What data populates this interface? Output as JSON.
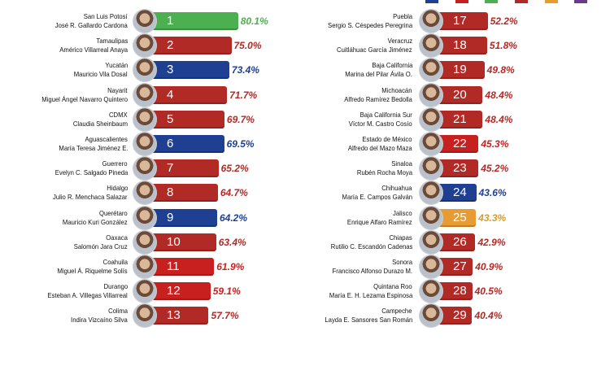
{
  "colors": {
    "morena": "#b22a26",
    "pan": "#1f3f93",
    "pri": "#c8201f",
    "pvem": "#4caf50",
    "mc": "#e79b33",
    "legend_swatches": [
      "#1f3f93",
      "#c8201f",
      "#4caf50",
      "#b22a26",
      "#e79b33",
      "#6a3b8c"
    ]
  },
  "chart_data": {
    "type": "bar",
    "x_unit": "%",
    "series": [
      {
        "rank": "1",
        "state": "San Luis Potosí",
        "governor": "José R. Gallardo Cardona",
        "value": 80.1,
        "value_label": "80.1%",
        "color": "#4caf50"
      },
      {
        "rank": "2",
        "state": "Tamaulipas",
        "governor": "Américo Villarreal Anaya",
        "value": 75.0,
        "value_label": "75.0%",
        "color": "#b22a26"
      },
      {
        "rank": "3",
        "state": "Yucatán",
        "governor": "Mauricio Vila Dosal",
        "value": 73.4,
        "value_label": "73.4%",
        "color": "#1f3f93"
      },
      {
        "rank": "4",
        "state": "Nayarit",
        "governor": "Miguel Ángel Navarro Quintero",
        "value": 71.7,
        "value_label": "71.7%",
        "color": "#b22a26"
      },
      {
        "rank": "5",
        "state": "CDMX",
        "governor": "Claudia Sheinbaum",
        "value": 69.7,
        "value_label": "69.7%",
        "color": "#b22a26"
      },
      {
        "rank": "6",
        "state": "Aguascalientes",
        "governor": "María Teresa Jiménez E.",
        "value": 69.5,
        "value_label": "69.5%",
        "color": "#1f3f93"
      },
      {
        "rank": "7",
        "state": "Guerrero",
        "governor": "Evelyn C. Salgado Pineda",
        "value": 65.2,
        "value_label": "65.2%",
        "color": "#b22a26"
      },
      {
        "rank": "8",
        "state": "Hidalgo",
        "governor": "Julio R. Menchaca Salazar",
        "value": 64.7,
        "value_label": "64.7%",
        "color": "#b22a26"
      },
      {
        "rank": "9",
        "state": "Querétaro",
        "governor": "Mauricio Kuri González",
        "value": 64.2,
        "value_label": "64.2%",
        "color": "#1f3f93"
      },
      {
        "rank": "10",
        "state": "Oaxaca",
        "governor": "Salomón Jara Cruz",
        "value": 63.4,
        "value_label": "63.4%",
        "color": "#b22a26"
      },
      {
        "rank": "11",
        "state": "Coahuila",
        "governor": "Miguel Á. Riquelme Solís",
        "value": 61.9,
        "value_label": "61.9%",
        "color": "#c8201f"
      },
      {
        "rank": "12",
        "state": "Durango",
        "governor": "Esteban A. Villegas Villarreal",
        "value": 59.1,
        "value_label": "59.1%",
        "color": "#c8201f"
      },
      {
        "rank": "13",
        "state": "Colima",
        "governor": "Indira Vizcaíno Silva",
        "value": 57.7,
        "value_label": "57.7%",
        "color": "#b22a26"
      },
      {
        "rank": "17",
        "state": "Puebla",
        "governor": "Sergio S. Céspedes Peregrina",
        "value": 52.2,
        "value_label": "52.2%",
        "color": "#b22a26"
      },
      {
        "rank": "18",
        "state": "Veracruz",
        "governor": "Cuitláhuac García Jiménez",
        "value": 51.8,
        "value_label": "51.8%",
        "color": "#b22a26"
      },
      {
        "rank": "19",
        "state": "Baja California",
        "governor": "Marina del Pilar Ávila O.",
        "value": 49.8,
        "value_label": "49.8%",
        "color": "#b22a26"
      },
      {
        "rank": "20",
        "state": "Michoacán",
        "governor": "Alfredo Ramírez Bedolla",
        "value": 48.4,
        "value_label": "48.4%",
        "color": "#b22a26"
      },
      {
        "rank": "21",
        "state": "Baja California Sur",
        "governor": "Víctor M. Castro Cosío",
        "value": 48.4,
        "value_label": "48.4%",
        "color": "#b22a26"
      },
      {
        "rank": "22",
        "state": "Estado de México",
        "governor": "Alfredo del Mazo Maza",
        "value": 45.3,
        "value_label": "45.3%",
        "color": "#c8201f"
      },
      {
        "rank": "23",
        "state": "Sinaloa",
        "governor": "Rubén Rocha Moya",
        "value": 45.2,
        "value_label": "45.2%",
        "color": "#b22a26"
      },
      {
        "rank": "24",
        "state": "Chihuahua",
        "governor": "María E. Campos Galván",
        "value": 43.6,
        "value_label": "43.6%",
        "color": "#1f3f93"
      },
      {
        "rank": "25",
        "state": "Jalisco",
        "governor": "Enrique Alfaro Ramírez",
        "value": 43.3,
        "value_label": "43.3%",
        "color": "#e79b33"
      },
      {
        "rank": "26",
        "state": "Chiapas",
        "governor": "Rutilio C. Escandón Cadenas",
        "value": 42.9,
        "value_label": "42.9%",
        "color": "#b22a26"
      },
      {
        "rank": "27",
        "state": "Sonora",
        "governor": "Francisco Alfonso Durazo M.",
        "value": 40.9,
        "value_label": "40.9%",
        "color": "#b22a26"
      },
      {
        "rank": "28",
        "state": "Quintana Roo",
        "governor": "María E. H. Lezama Espinosa",
        "value": 40.5,
        "value_label": "40.5%",
        "color": "#b22a26"
      },
      {
        "rank": "29",
        "state": "Campeche",
        "governor": "Layda E. Sansores San Román",
        "value": 40.4,
        "value_label": "40.4%",
        "color": "#b22a26"
      }
    ]
  }
}
